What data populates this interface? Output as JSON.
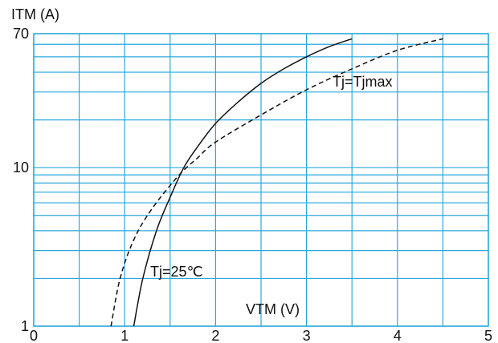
{
  "chart_data": {
    "type": "line",
    "ylabel": "ITM (A)",
    "xlabel": "VTM (V)",
    "xlim": [
      0,
      5
    ],
    "ylim": [
      1,
      70
    ],
    "yscale": "log",
    "grid": true,
    "x_ticks": [
      "0",
      "1",
      "2",
      "3",
      "4",
      "5"
    ],
    "y_ticks": [
      "1",
      "10",
      "70"
    ],
    "y_tick_values": [
      1,
      10,
      70
    ],
    "series": [
      {
        "name": "Tj=25℃",
        "style": "solid",
        "x": [
          1.1,
          1.2,
          1.35,
          1.5,
          1.65,
          1.8,
          2.0,
          2.25,
          2.5,
          2.75,
          3.0,
          3.25,
          3.5
        ],
        "y": [
          1.0,
          2.0,
          4.0,
          6.5,
          10.0,
          13.5,
          19.0,
          26.0,
          34.0,
          42.0,
          50.0,
          58.0,
          65.0
        ]
      },
      {
        "name": "Tj=Tjmax",
        "style": "dashed",
        "x": [
          0.85,
          0.95,
          1.1,
          1.3,
          1.6,
          1.8,
          2.0,
          2.5,
          3.0,
          3.5,
          4.0,
          4.5
        ],
        "y": [
          1.0,
          2.0,
          3.5,
          5.5,
          9.0,
          11.5,
          14.5,
          21.5,
          31.0,
          42.0,
          55.0,
          65.0
        ]
      }
    ],
    "annotations": [
      "Tj=25℃",
      "Tj=Tjmax"
    ],
    "colors": {
      "grid": "#2aa8dc",
      "line": "#111111"
    }
  }
}
